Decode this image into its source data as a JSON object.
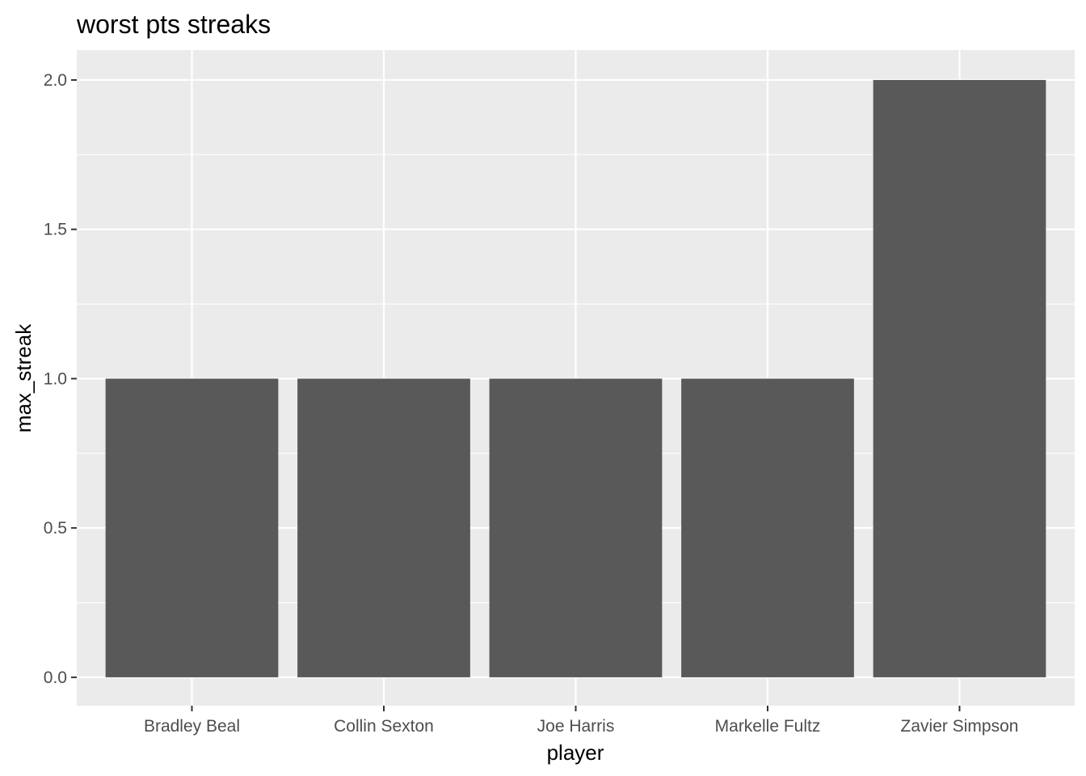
{
  "chart_data": {
    "type": "bar",
    "title": "worst pts streaks",
    "xlabel": "player",
    "ylabel": "max_streak",
    "categories": [
      "Bradley Beal",
      "Collin Sexton",
      "Joe Harris",
      "Markelle Fultz",
      "Zavier Simpson"
    ],
    "values": [
      1,
      1,
      1,
      1,
      2
    ],
    "ylim": [
      -0.095,
      2.1
    ],
    "y_ticks": [
      0.0,
      0.5,
      1.0,
      1.5,
      2.0
    ],
    "y_tick_labels": [
      "0.0",
      "0.5",
      "1.0",
      "1.5",
      "2.0"
    ],
    "grid": true,
    "colors": {
      "panel_background": "#ebebeb",
      "grid_major": "#ffffff",
      "bar_fill": "#595959",
      "tick_text": "#4d4d4d",
      "tick_mark": "#333333"
    }
  }
}
